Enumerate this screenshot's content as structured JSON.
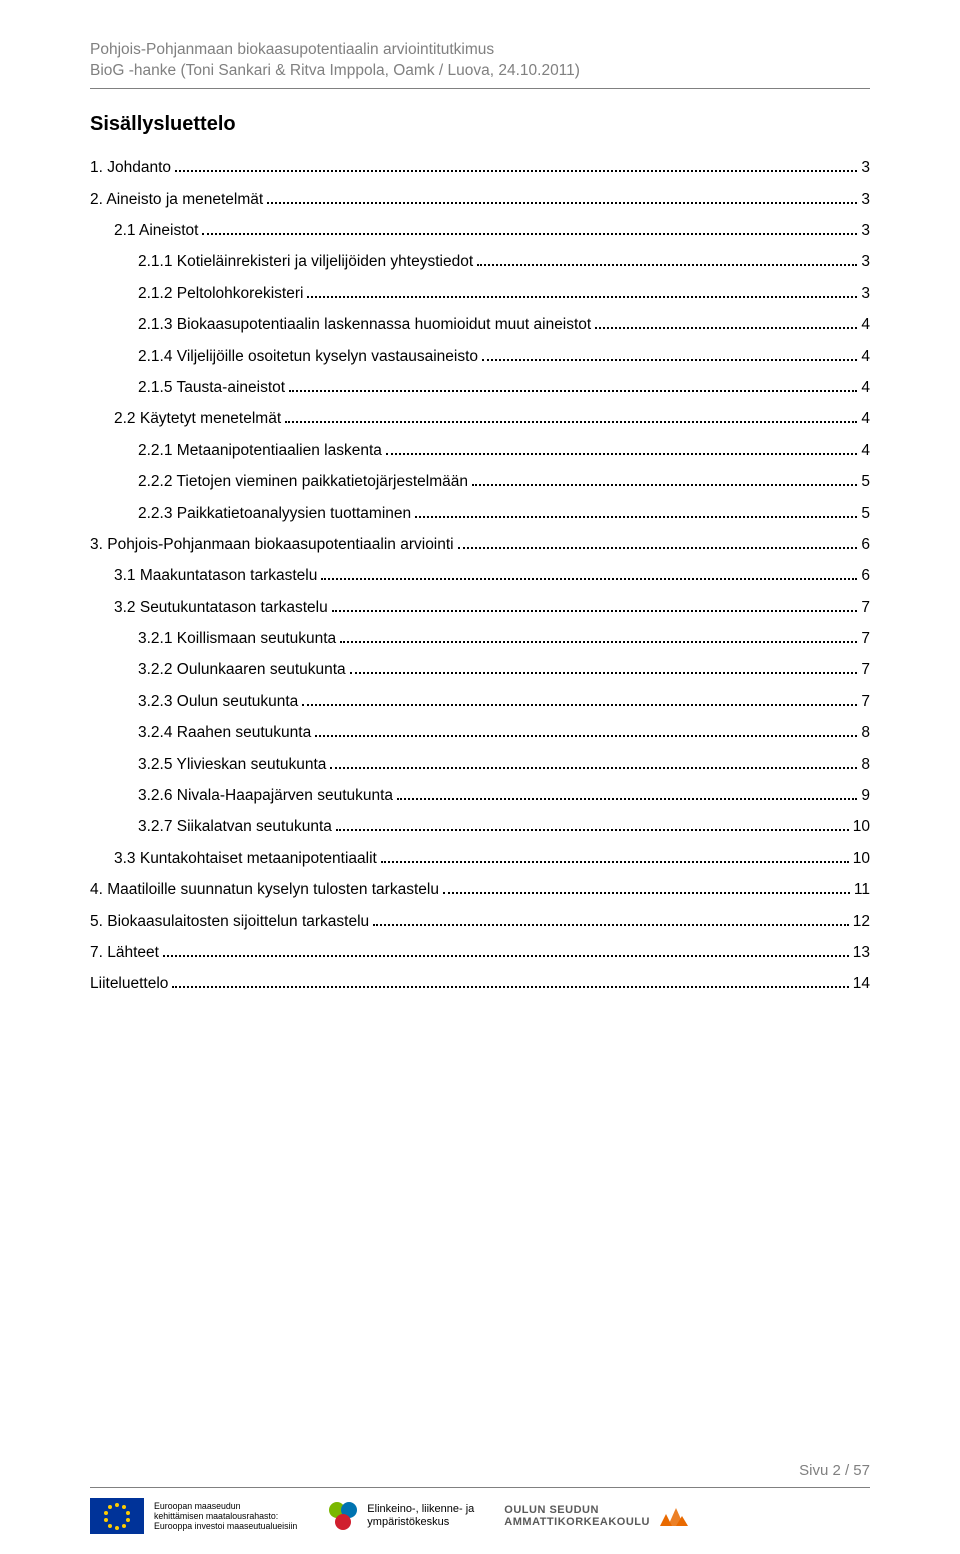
{
  "header": {
    "line1": "Pohjois-Pohjanmaan biokaasupotentiaalin arviointitutkimus",
    "line2": "BioG -hanke (Toni Sankari & Ritva Imppola, Oamk / Luova, 24.10.2011)"
  },
  "title": "Sisällysluettelo",
  "toc": [
    {
      "label": "1. Johdanto",
      "page": "3",
      "indent": 0
    },
    {
      "label": "2. Aineisto ja menetelmät",
      "page": "3",
      "indent": 0
    },
    {
      "label": "2.1 Aineistot",
      "page": "3",
      "indent": 1
    },
    {
      "label": "2.1.1 Kotieläinrekisteri ja viljelijöiden yhteystiedot",
      "page": "3",
      "indent": 2
    },
    {
      "label": "2.1.2 Peltolohkorekisteri",
      "page": "3",
      "indent": 2
    },
    {
      "label": "2.1.3 Biokaasupotentiaalin laskennassa huomioidut muut aineistot",
      "page": "4",
      "indent": 2
    },
    {
      "label": "2.1.4 Viljelijöille osoitetun kyselyn vastausaineisto",
      "page": "4",
      "indent": 2
    },
    {
      "label": "2.1.5 Tausta-aineistot",
      "page": "4",
      "indent": 2
    },
    {
      "label": "2.2 Käytetyt menetelmät",
      "page": "4",
      "indent": 1
    },
    {
      "label": "2.2.1 Metaanipotentiaalien laskenta",
      "page": "4",
      "indent": 2
    },
    {
      "label": "2.2.2 Tietojen vieminen paikkatietojärjestelmään",
      "page": "5",
      "indent": 2
    },
    {
      "label": "2.2.3 Paikkatietoanalyysien tuottaminen",
      "page": "5",
      "indent": 2
    },
    {
      "label": "3. Pohjois-Pohjanmaan biokaasupotentiaalin arviointi",
      "page": "6",
      "indent": 0
    },
    {
      "label": "3.1 Maakuntatason tarkastelu",
      "page": "6",
      "indent": 1
    },
    {
      "label": "3.2 Seutukuntatason tarkastelu",
      "page": "7",
      "indent": 1
    },
    {
      "label": "3.2.1 Koillismaan seutukunta",
      "page": "7",
      "indent": 2
    },
    {
      "label": "3.2.2 Oulunkaaren seutukunta",
      "page": "7",
      "indent": 2
    },
    {
      "label": "3.2.3 Oulun seutukunta",
      "page": "7",
      "indent": 2
    },
    {
      "label": "3.2.4 Raahen seutukunta",
      "page": "8",
      "indent": 2
    },
    {
      "label": "3.2.5 Ylivieskan seutukunta",
      "page": "8",
      "indent": 2
    },
    {
      "label": "3.2.6 Nivala-Haapajärven seutukunta",
      "page": "9",
      "indent": 2
    },
    {
      "label": "3.2.7 Siikalatvan seutukunta",
      "page": "10",
      "indent": 2
    },
    {
      "label": "3.3 Kuntakohtaiset metaanipotentiaalit",
      "page": "10",
      "indent": 1
    },
    {
      "label": "4. Maatiloille suunnatun kyselyn tulosten tarkastelu",
      "page": "11",
      "indent": 0
    },
    {
      "label": "5. Biokaasulaitosten sijoittelun tarkastelu",
      "page": "12",
      "indent": 0
    },
    {
      "label": "7. Lähteet",
      "page": "13",
      "indent": 0
    },
    {
      "label": "Liiteluettelo",
      "page": "14",
      "indent": 0
    }
  ],
  "footer": {
    "page_label": "Sivu 2 / 57",
    "eu": {
      "line1": "Euroopan maaseudun",
      "line2": "kehittämisen maatalousrahasto:",
      "line3": "Eurooppa investoi maaseutualueisiin"
    },
    "ely": {
      "line1": "Elinkeino-, liikenne- ja",
      "line2": "ympäristökeskus"
    },
    "oamk": {
      "line1": "OULUN SEUDUN",
      "line2": "AMMATTIKORKEAKOULU"
    }
  },
  "colors": {
    "text": "#000000",
    "muted": "#808080",
    "eu_blue": "#003399",
    "eu_gold": "#ffcc00",
    "oamk_orange": "#e96a00",
    "ely_green": "#7ab800",
    "ely_blue": "#0073b0",
    "ely_red": "#d01f2e"
  }
}
